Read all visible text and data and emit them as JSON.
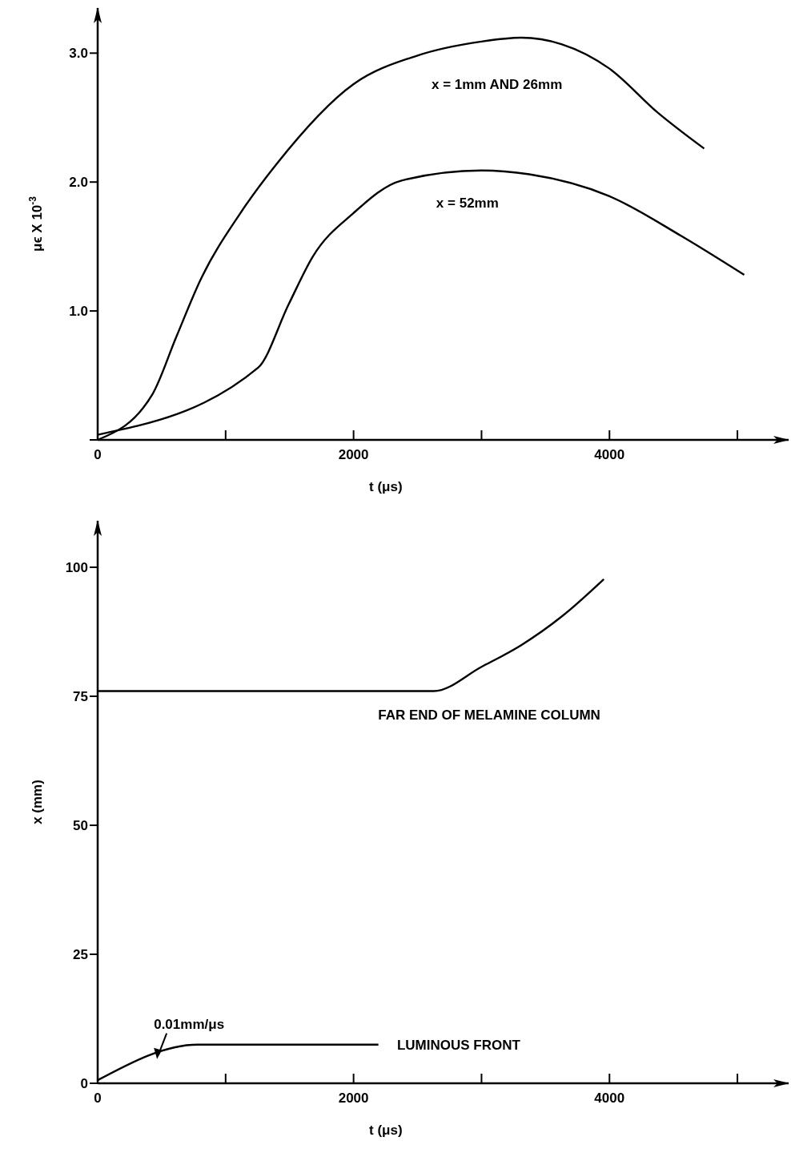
{
  "chart_data": [
    {
      "type": "line",
      "xlabel": "t (μs)",
      "ylabel": "μϵ X 10$^{-3}$",
      "xlim": [
        0,
        5400
      ],
      "ylim": [
        0,
        3.35
      ],
      "xticks": [
        0,
        {
          "value": 1000,
          "label": null
        },
        2000,
        {
          "value": 3000,
          "label": null
        },
        4000,
        {
          "value": 5000,
          "label": null
        }
      ],
      "yticks": [
        {
          "value": 0,
          "label": null
        },
        {
          "value": 1,
          "label": "1.0"
        },
        {
          "value": 2,
          "label": "2.0"
        },
        {
          "value": 3,
          "label": "3.0"
        }
      ],
      "grid": false,
      "marker": "none",
      "line_style": "solid",
      "series": [
        {
          "name": "x = 1mm AND 26mm",
          "color": "#000000",
          "x": [
            0,
            426,
            615,
            803,
            1116,
            1398,
            2000,
            2495,
            3000,
            3310,
            3624,
            4000,
            4376,
            4740
          ],
          "values": [
            0,
            0.35,
            0.8,
            1.24,
            1.76,
            2.14,
            2.76,
            2.98,
            3.09,
            3.12,
            3.07,
            2.88,
            2.54,
            2.26
          ]
        },
        {
          "name": "x = 52mm",
          "color": "#000000",
          "x": [
            0,
            1254,
            1492,
            1680,
            2000,
            2370,
            3000,
            3373,
            4000,
            4564,
            5053
          ],
          "values": [
            0.04,
            0.56,
            1.05,
            1.42,
            1.76,
            2.01,
            2.09,
            2.06,
            1.89,
            1.58,
            1.28
          ]
        }
      ]
    },
    {
      "type": "line",
      "xlabel": "t (μs)",
      "ylabel": "x (mm)",
      "xlim": [
        0,
        5400
      ],
      "ylim": [
        0,
        109
      ],
      "xticks": [
        0,
        {
          "value": 1000,
          "label": null
        },
        2000,
        {
          "value": 3000,
          "label": null
        },
        4000,
        {
          "value": 5000,
          "label": null
        }
      ],
      "yticks": [
        0,
        25,
        50,
        75,
        100
      ],
      "grid": false,
      "marker": "none",
      "line_style": "solid",
      "annotations": [
        "0.01mm/μs"
      ],
      "series": [
        {
          "name": "FAR END OF MELAMINE COLUMN",
          "color": "#000000",
          "x": [
            0,
            2627,
            3000,
            3310,
            3624,
            3956
          ],
          "values": [
            76,
            76,
            80.7,
            84.9,
            90.4,
            97.7
          ]
        },
        {
          "name": "LUMINOUS FRONT",
          "color": "#000000",
          "x": [
            0,
            784,
            2194
          ],
          "values": [
            0.6,
            7.5,
            7.5
          ]
        }
      ]
    }
  ]
}
